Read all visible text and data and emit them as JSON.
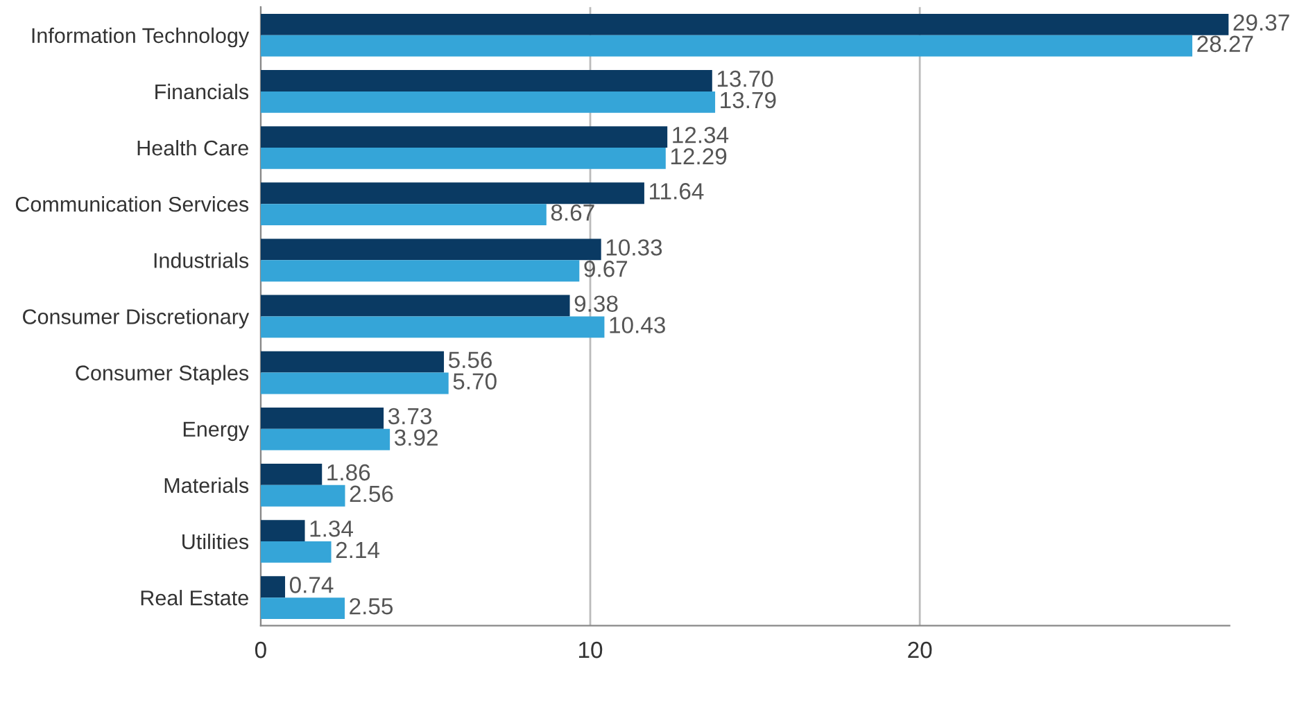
{
  "chart_data": {
    "type": "bar",
    "orientation": "horizontal",
    "categories": [
      "Information Technology",
      "Financials",
      "Health Care",
      "Communication Services",
      "Industrials",
      "Consumer Discretionary",
      "Consumer Staples",
      "Energy",
      "Materials",
      "Utilities",
      "Real Estate"
    ],
    "series": [
      {
        "color": "#0a3a63",
        "values": [
          29.37,
          13.7,
          12.34,
          11.64,
          10.33,
          9.38,
          5.56,
          3.73,
          1.86,
          1.34,
          0.74
        ],
        "value_labels": [
          "29.37",
          "13.70",
          "12.34",
          "11.64",
          "10.33",
          "9.38",
          "5.56",
          "3.73",
          "1.86",
          "1.34",
          "0.74"
        ]
      },
      {
        "color": "#35a5d8",
        "values": [
          28.27,
          13.79,
          12.29,
          8.67,
          9.67,
          10.43,
          5.7,
          3.92,
          2.56,
          2.14,
          2.55
        ],
        "value_labels": [
          "28.27",
          "13.79",
          "12.29",
          "8.67",
          "9.67",
          "10.43",
          "5.70",
          "3.92",
          "2.56",
          "2.14",
          "2.55"
        ]
      }
    ],
    "xlim": [
      0,
      29.4
    ],
    "xticks": [
      0,
      10,
      20
    ],
    "grid": "x"
  }
}
